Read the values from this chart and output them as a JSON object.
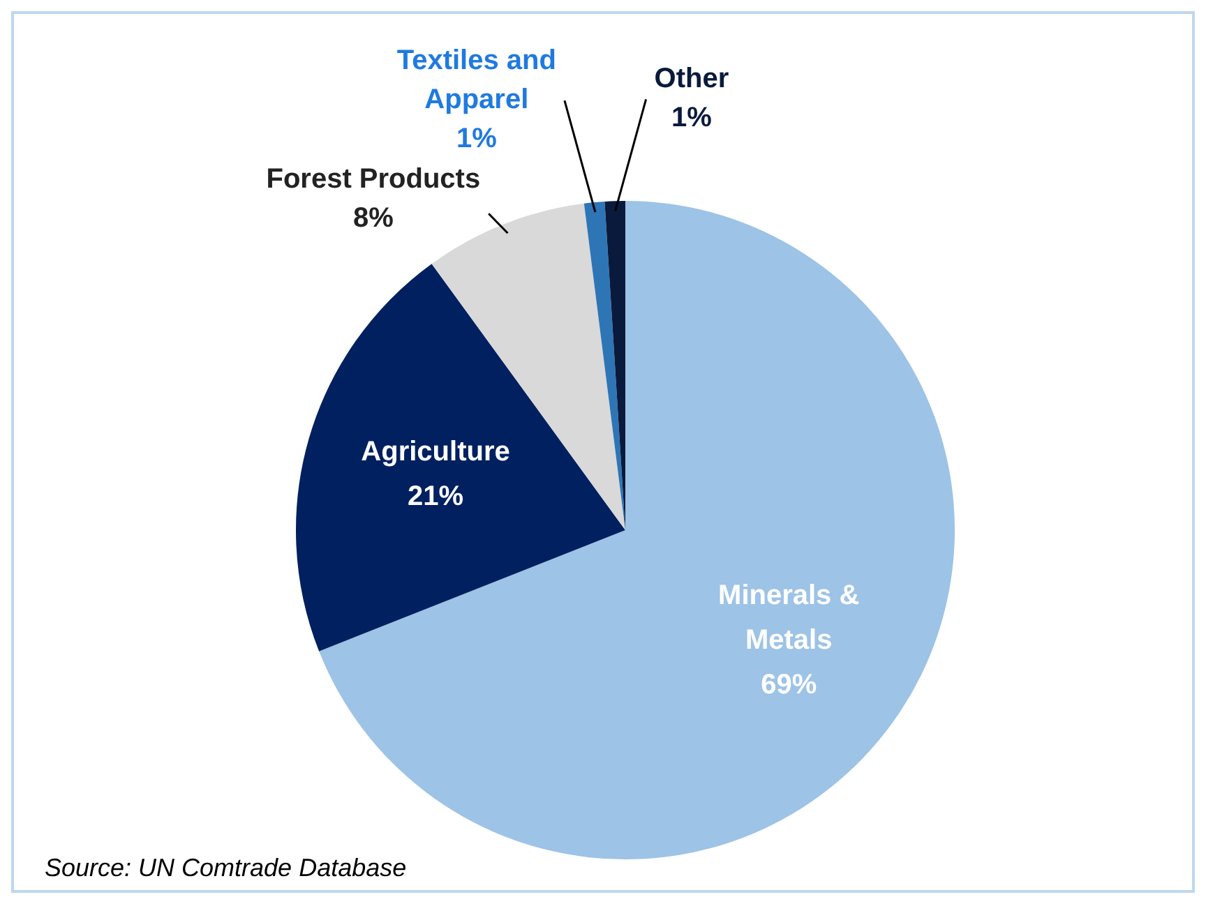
{
  "chart_data": {
    "type": "pie",
    "categories": [
      "Minerals & Metals",
      "Agriculture",
      "Forest Products",
      "Textiles and Apparel",
      "Other"
    ],
    "values": [
      69,
      21,
      8,
      1,
      1
    ],
    "value_labels": [
      "69%",
      "21%",
      "8%",
      "1%",
      "1%"
    ],
    "colors": [
      "#9dc3e6",
      "#002060",
      "#d9d9d9",
      "#2e75b6",
      "#0a1a3c"
    ],
    "legend": false,
    "annotations": [
      "Source: UN Comtrade Database"
    ]
  }
}
